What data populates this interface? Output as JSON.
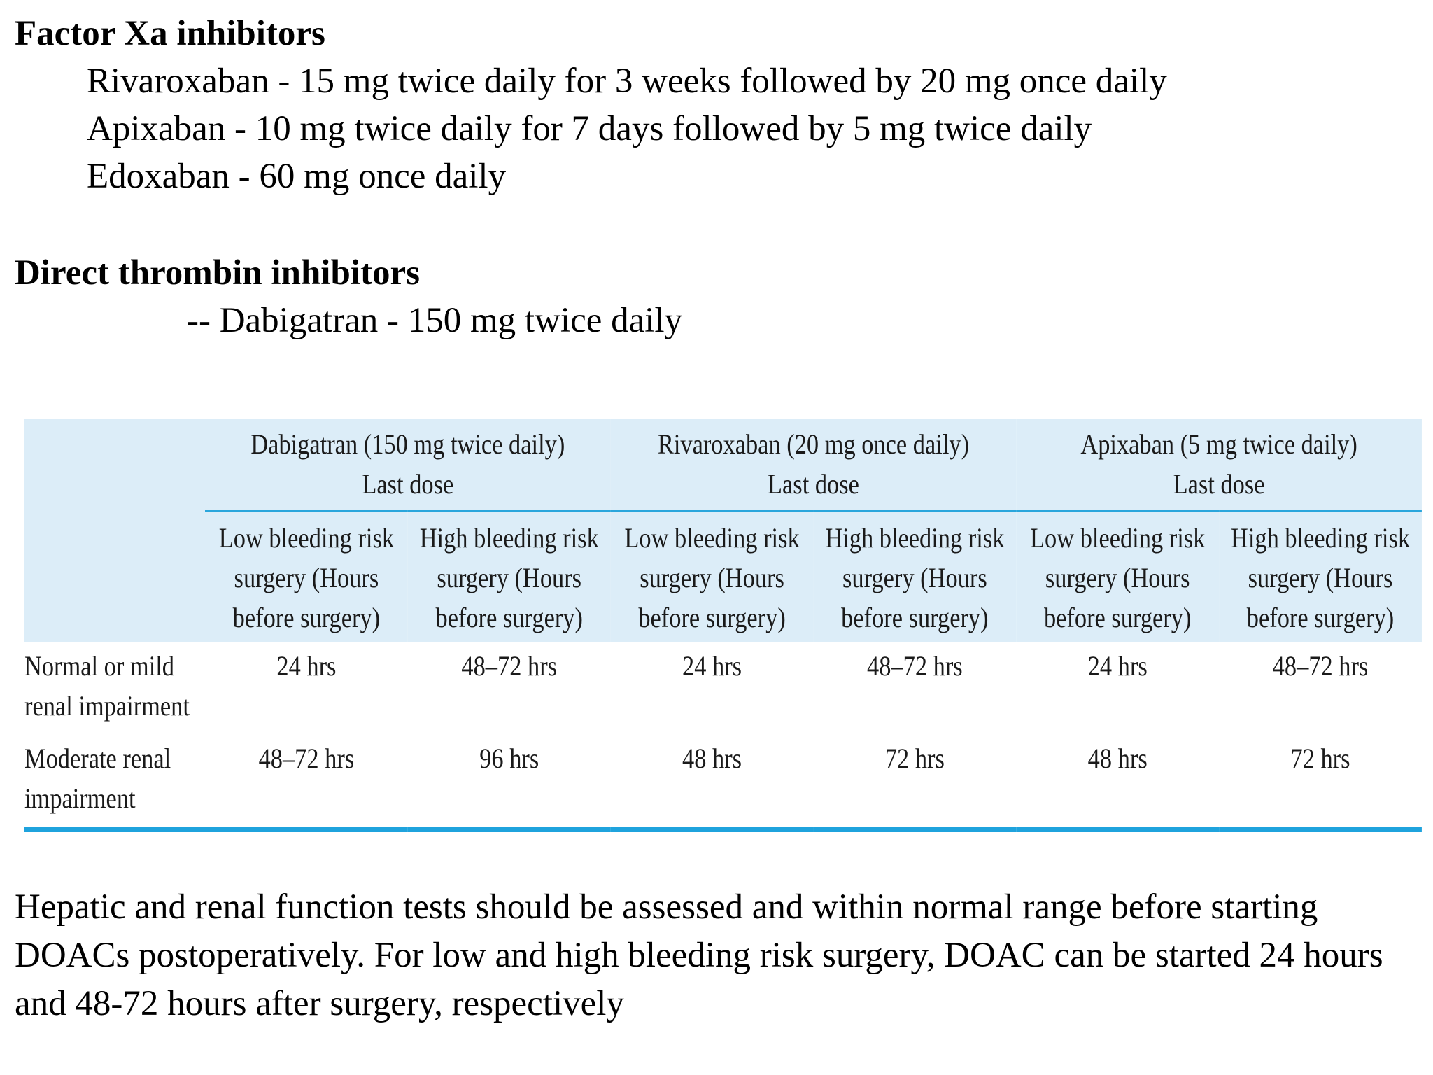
{
  "factor_xa": {
    "heading": "Factor Xa inhibitors",
    "drugs": [
      "Rivaroxaban - 15 mg  twice daily for 3 weeks followed by 20 mg once daily",
      "Apixaban - 10 mg twice daily for 7 days followed by 5 mg twice daily",
      "Edoxaban - 60 mg once daily"
    ]
  },
  "dti": {
    "heading": "Direct thrombin inhibitors",
    "drug": "-- Dabigatran - 150 mg twice daily"
  },
  "table": {
    "drug_headers": [
      {
        "name": "Dabigatran (150 mg twice daily)",
        "sub": "Last dose"
      },
      {
        "name": "Rivaroxaban (20 mg once daily)",
        "sub": "Last dose"
      },
      {
        "name": "Apixaban (5 mg twice daily)",
        "sub": "Last dose"
      }
    ],
    "risk_headers": [
      "Low bleeding risk surgery (Hours before surgery)",
      "High bleeding risk surgery (Hours before surgery)",
      "Low bleeding risk surgery (Hours before surgery)",
      "High bleeding risk surgery (Hours before surgery)",
      "Low bleeding risk surgery (Hours before surgery)",
      "High bleeding risk surgery (Hours before surgery)"
    ],
    "rows": [
      {
        "label": "Normal or mild renal impairment",
        "values": [
          "24 hrs",
          "48–72 hrs",
          "24 hrs",
          "48–72 hrs",
          "24 hrs",
          "48–72 hrs"
        ]
      },
      {
        "label": "Moderate renal impairment",
        "values": [
          "48–72 hrs",
          "96 hrs",
          "48 hrs",
          "72 hrs",
          "48 hrs",
          "72 hrs"
        ]
      }
    ]
  },
  "footer": {
    "text": "Hepatic and renal function tests should be assessed and within normal range before starting DOACs postoperatively. For low and high bleeding risk surgery, DOAC can be started 24 hours and 48-72 hours after surgery, respectively"
  },
  "colors": {
    "table_header_bg": "#dcedf8",
    "accent_rule": "#2aa6dc"
  }
}
